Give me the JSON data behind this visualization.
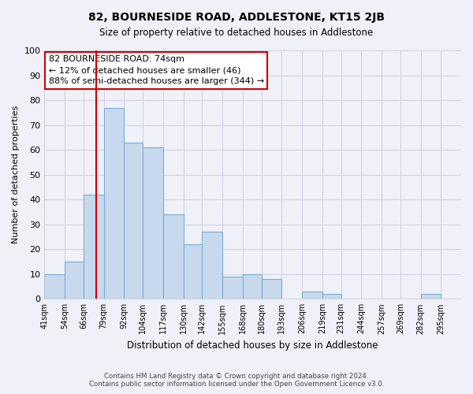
{
  "title": "82, BOURNESIDE ROAD, ADDLESTONE, KT15 2JB",
  "subtitle": "Size of property relative to detached houses in Addlestone",
  "xlabel": "Distribution of detached houses by size in Addlestone",
  "ylabel": "Number of detached properties",
  "bar_labels": [
    "41sqm",
    "54sqm",
    "66sqm",
    "79sqm",
    "92sqm",
    "104sqm",
    "117sqm",
    "130sqm",
    "142sqm",
    "155sqm",
    "168sqm",
    "180sqm",
    "193sqm",
    "206sqm",
    "219sqm",
    "231sqm",
    "244sqm",
    "257sqm",
    "269sqm",
    "282sqm",
    "295sqm"
  ],
  "bar_values": [
    10,
    15,
    42,
    77,
    63,
    61,
    34,
    22,
    27,
    9,
    10,
    8,
    0,
    3,
    2,
    0,
    0,
    0,
    0,
    2,
    0
  ],
  "bar_color": "#c8d9ee",
  "bar_edge_color": "#7aadd4",
  "property_line_x": 74,
  "bin_edges": [
    41,
    54,
    66,
    79,
    92,
    104,
    117,
    130,
    142,
    155,
    168,
    180,
    193,
    206,
    219,
    231,
    244,
    257,
    269,
    282,
    295,
    308
  ],
  "annotation_title": "82 BOURNESIDE ROAD: 74sqm",
  "annotation_line1": "← 12% of detached houses are smaller (46)",
  "annotation_line2": "88% of semi-detached houses are larger (344) →",
  "annotation_box_color": "#ffffff",
  "annotation_box_edge": "#cc0000",
  "vline_color": "#cc0000",
  "ylim": [
    0,
    100
  ],
  "yticks": [
    0,
    10,
    20,
    30,
    40,
    50,
    60,
    70,
    80,
    90,
    100
  ],
  "footer_line1": "Contains HM Land Registry data © Crown copyright and database right 2024.",
  "footer_line2": "Contains public sector information licensed under the Open Government Licence v3.0.",
  "bg_color": "#f0f0f8",
  "grid_color": "#d0d0e0"
}
